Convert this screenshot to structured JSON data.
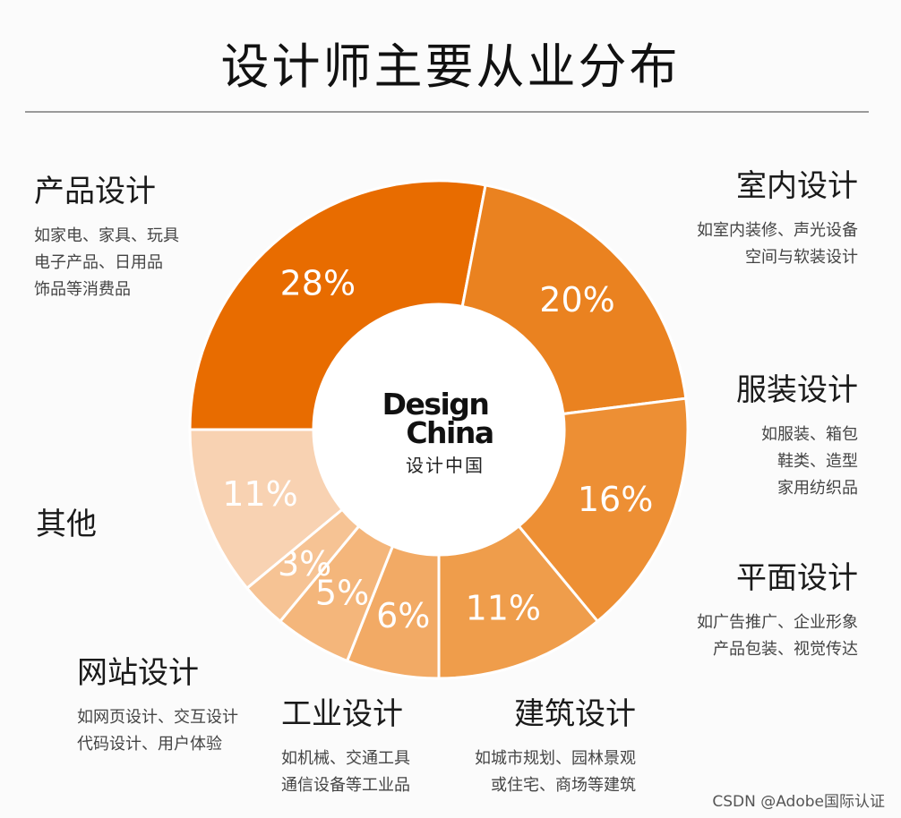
{
  "title": "设计师主要从业分布",
  "logo": {
    "line1": "Design",
    "line2": "China",
    "cn": "设计中国"
  },
  "watermark": "CSDN @Adobe国际认证",
  "colors": {
    "slices": [
      "#e86c00",
      "#ea8220",
      "#ed8f34",
      "#ef9d4b",
      "#f2aa65",
      "#f4b67b",
      "#f6c394",
      "#f8d2b2"
    ],
    "label": "#ffffff",
    "stroke": "#ffffff"
  },
  "chart_data": {
    "type": "pie",
    "donut": true,
    "title": "设计师主要从业分布",
    "categories": [
      "产品设计",
      "室内设计",
      "服装设计",
      "平面设计",
      "建筑设计",
      "工业设计",
      "网站设计",
      "其他"
    ],
    "values": [
      28,
      20,
      16,
      11,
      6,
      5,
      3,
      11
    ],
    "data_labels": [
      "28%",
      "20%",
      "16%",
      "11%",
      "6%",
      "5%",
      "3%",
      "11%"
    ]
  },
  "categories": [
    {
      "name": "产品设计",
      "desc": [
        "如家电、家具、玩具",
        "电子产品、日用品",
        "饰品等消费品"
      ]
    },
    {
      "name": "室内设计",
      "desc": [
        "如室内装修、声光设备",
        "空间与软装设计"
      ]
    },
    {
      "name": "服装设计",
      "desc": [
        "如服装、箱包",
        "鞋类、造型",
        "家用纺织品"
      ]
    },
    {
      "name": "平面设计",
      "desc": [
        "如广告推广、企业形象",
        "产品包装、视觉传达"
      ]
    },
    {
      "name": "建筑设计",
      "desc": [
        "如城市规划、园林景观",
        "或住宅、商场等建筑"
      ]
    },
    {
      "name": "工业设计",
      "desc": [
        "如机械、交通工具",
        "通信设备等工业品"
      ]
    },
    {
      "name": "网站设计",
      "desc": [
        "如网页设计、交互设计",
        "代码设计、用户体验"
      ]
    },
    {
      "name": "其他",
      "desc": []
    }
  ]
}
